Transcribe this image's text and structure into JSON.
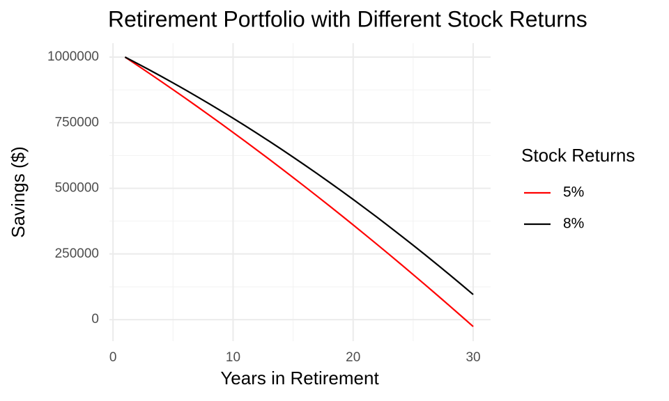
{
  "chart_data": {
    "type": "line",
    "title": "Retirement Portfolio with Different Stock Returns",
    "x_label": "Years in Retirement",
    "y_label": "Savings ($)",
    "legend_title": "Stock Returns",
    "legend_position": "right",
    "grid": true,
    "x": [
      1,
      2,
      3,
      4,
      5,
      6,
      7,
      8,
      9,
      10,
      11,
      12,
      13,
      14,
      15,
      16,
      17,
      18,
      19,
      20,
      21,
      22,
      23,
      24,
      25,
      26,
      27,
      28,
      29,
      30
    ],
    "series": [
      {
        "name": "5%",
        "color": "#ff0000",
        "values": [
          1000000,
          969500,
          938700,
          907500,
          876000,
          844100,
          811800,
          779200,
          746300,
          713000,
          679400,
          645400,
          611000,
          576300,
          541300,
          505900,
          470100,
          434000,
          397600,
          360800,
          323600,
          286100,
          248300,
          210100,
          171500,
          132600,
          93400,
          53800,
          13800,
          -26500
        ]
      },
      {
        "name": "8%",
        "color": "#000000",
        "values": [
          1000000,
          976200,
          951900,
          927100,
          901700,
          875900,
          849400,
          822500,
          795000,
          767000,
          738500,
          709400,
          679800,
          649700,
          619000,
          587800,
          556100,
          523800,
          491100,
          457800,
          423900,
          389600,
          354700,
          319200,
          283300,
          246800,
          209800,
          172200,
          134100,
          95500
        ]
      }
    ],
    "xlim": [
      -0.3,
      31.45
    ],
    "ylim": [
      -82000,
      1053000
    ],
    "xticks": [
      0,
      10,
      20,
      30
    ],
    "yticks": [
      0,
      250000,
      500000,
      750000,
      1000000
    ],
    "xminorticks": [
      5,
      15,
      25
    ],
    "yminorticks": [
      125000,
      375000,
      625000,
      875000
    ]
  }
}
